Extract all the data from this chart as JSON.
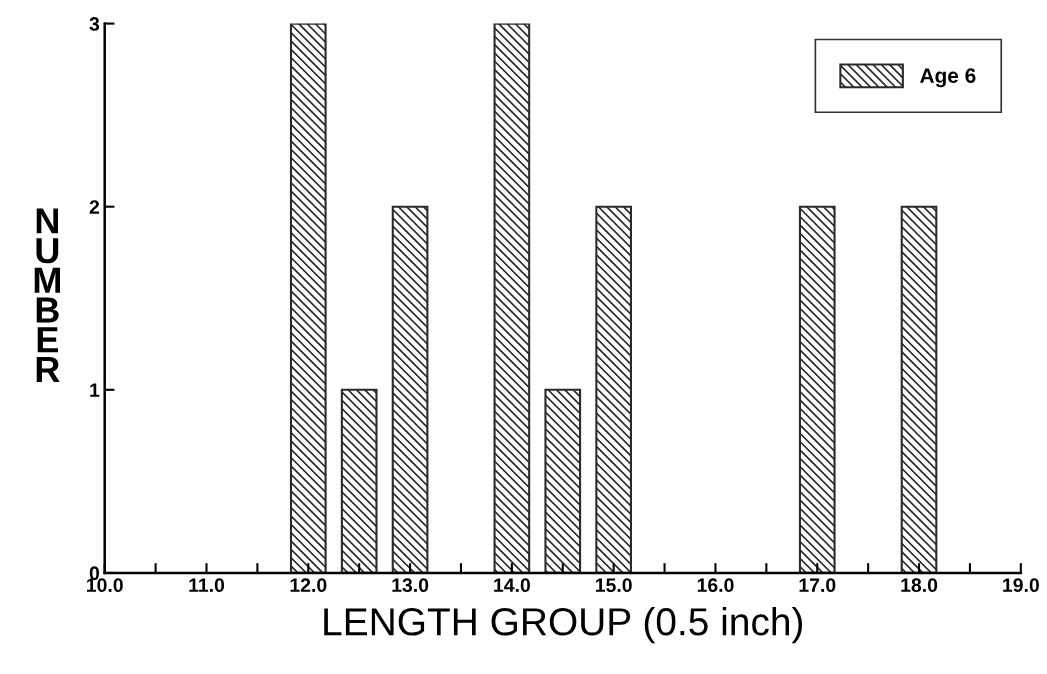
{
  "chart_data": {
    "type": "bar",
    "xlabel": "LENGTH GROUP (0.5 inch)",
    "ylabel": "NUMBER",
    "x": [
      12.0,
      12.5,
      13.0,
      14.0,
      14.5,
      15.0,
      17.0,
      18.0
    ],
    "series": [
      {
        "name": "Age 6",
        "color": "#2a2a2a",
        "values": [
          3,
          1,
          2,
          3,
          1,
          2,
          2,
          2
        ]
      }
    ],
    "xlim": [
      10,
      19
    ],
    "xticks": [
      {
        "value": 10,
        "label": "10.0"
      },
      {
        "value": 10.5,
        "label": null
      },
      {
        "value": 11,
        "label": "11.0"
      },
      {
        "value": 11.5,
        "label": null
      },
      {
        "value": 12,
        "label": "12.0"
      },
      {
        "value": 12.5,
        "label": null
      },
      {
        "value": 13,
        "label": "13.0"
      },
      {
        "value": 13.5,
        "label": null
      },
      {
        "value": 14,
        "label": "14.0"
      },
      {
        "value": 14.5,
        "label": null
      },
      {
        "value": 15,
        "label": "15.0"
      },
      {
        "value": 15.5,
        "label": null
      },
      {
        "value": 16,
        "label": "16.0"
      },
      {
        "value": 16.5,
        "label": null
      },
      {
        "value": 17,
        "label": "17.0"
      },
      {
        "value": 17.5,
        "label": null
      },
      {
        "value": 18,
        "label": "18.0"
      },
      {
        "value": 18.5,
        "label": null
      },
      {
        "value": 19,
        "label": "19.0"
      }
    ],
    "ylim": [
      0,
      3
    ],
    "yticks": [
      0,
      1,
      2,
      3
    ],
    "grid": false,
    "legend": "top right"
  }
}
